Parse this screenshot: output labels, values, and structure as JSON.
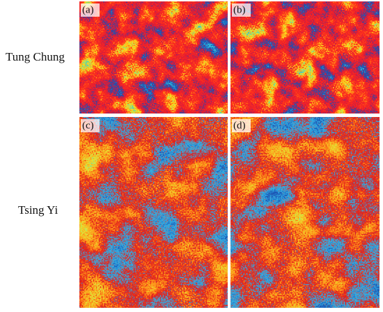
{
  "rows": [
    {
      "label": "Tung Chung",
      "panels": [
        "(a)",
        "(b)"
      ]
    },
    {
      "label": "Tsing Yi",
      "panels": [
        "(c)",
        "(d)"
      ]
    }
  ]
}
